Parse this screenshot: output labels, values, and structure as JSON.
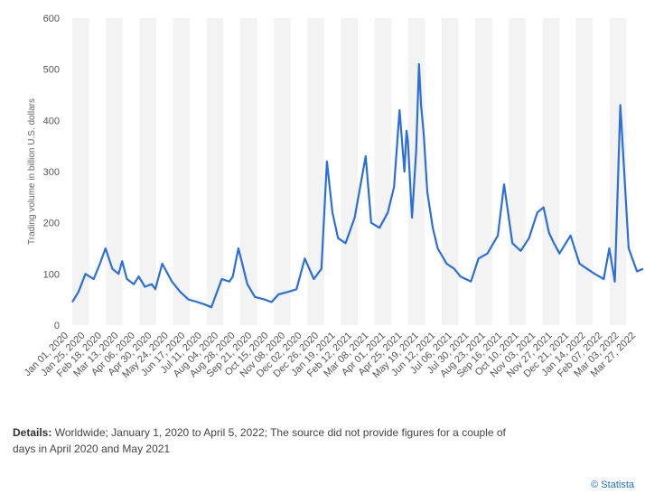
{
  "details": {
    "label": "Details:",
    "text": "Worldwide; January 1, 2020 to April 5, 2022; The source did not provide figures for a couple of days in April 2020 and May 2021"
  },
  "credit": "© Statista",
  "colors": {
    "line": "#2a6fdb",
    "band": "#f3f3f3",
    "axis": "#888888"
  },
  "chart_data": {
    "type": "line",
    "title": "",
    "xlabel": "",
    "ylabel": "Trading volume in billion U.S. dollars",
    "ylim": [
      0,
      600
    ],
    "yticks": [
      0,
      100,
      200,
      300,
      400,
      500,
      600
    ],
    "xticks": [
      "Jan 01, 2020",
      "Jan 25, 2020",
      "Feb 18, 2020",
      "Mar 13, 2020",
      "Apr 06, 2020",
      "Apr 30, 2020",
      "May 24, 2020",
      "Jun 17, 2020",
      "Jul 11, 2020",
      "Aug 04, 2020",
      "Aug 28, 2020",
      "Sep 21, 2020",
      "Oct 15, 2020",
      "Nov 08, 2020",
      "Dec 02, 2020",
      "Dec 26, 2020",
      "Jan 19, 2021",
      "Feb 12, 2021",
      "Mar 08, 2021",
      "Apr 01, 2021",
      "Apr 25, 2021",
      "May 19, 2021",
      "Jun 12, 2021",
      "Jul 06, 2021",
      "Jul 30, 2021",
      "Aug 23, 2021",
      "Sep 16, 2021",
      "Oct 10, 2021",
      "Nov 03, 2021",
      "Nov 27, 2021",
      "Dec 21, 2021",
      "Jan 14, 2022",
      "Feb 07, 2022",
      "Mar 03, 2022",
      "Mar 27, 2022"
    ],
    "grid": true,
    "legend": "none",
    "series": [
      {
        "x": [
          "2020-01-01",
          "2020-01-10",
          "2020-01-20",
          "2020-02-01",
          "2020-02-10",
          "2020-02-18",
          "2020-02-28",
          "2020-03-08",
          "2020-03-13",
          "2020-03-20",
          "2020-03-30",
          "2020-04-06",
          "2020-04-15",
          "2020-04-25",
          "2020-04-30",
          "2020-05-10",
          "2020-05-24",
          "2020-06-05",
          "2020-06-17",
          "2020-06-30",
          "2020-07-11",
          "2020-07-20",
          "2020-08-04",
          "2020-08-15",
          "2020-08-20",
          "2020-08-28",
          "2020-09-10",
          "2020-09-21",
          "2020-10-05",
          "2020-10-15",
          "2020-10-25",
          "2020-11-08",
          "2020-11-20",
          "2020-12-02",
          "2020-12-15",
          "2020-12-26",
          "2021-01-03",
          "2021-01-11",
          "2021-01-19",
          "2021-01-30",
          "2021-02-12",
          "2021-02-20",
          "2021-02-28",
          "2021-03-08",
          "2021-03-20",
          "2021-04-01",
          "2021-04-10",
          "2021-04-18",
          "2021-04-25",
          "2021-04-28",
          "2021-04-30",
          "2021-05-06",
          "2021-05-12",
          "2021-05-16",
          "2021-05-19",
          "2021-05-23",
          "2021-05-28",
          "2021-06-05",
          "2021-06-12",
          "2021-06-25",
          "2021-07-06",
          "2021-07-15",
          "2021-07-30",
          "2021-08-10",
          "2021-08-23",
          "2021-09-07",
          "2021-09-16",
          "2021-09-28",
          "2021-10-10",
          "2021-10-22",
          "2021-11-03",
          "2021-11-12",
          "2021-11-20",
          "2021-11-27",
          "2021-12-05",
          "2021-12-21",
          "2022-01-03",
          "2022-01-14",
          "2022-01-25",
          "2022-02-07",
          "2022-02-15",
          "2022-02-23",
          "2022-03-03",
          "2022-03-15",
          "2022-03-27",
          "2022-04-05"
        ],
        "values": [
          45,
          65,
          100,
          90,
          120,
          150,
          110,
          100,
          125,
          90,
          80,
          95,
          75,
          80,
          70,
          120,
          85,
          65,
          50,
          45,
          40,
          35,
          90,
          85,
          95,
          150,
          80,
          55,
          50,
          45,
          60,
          65,
          70,
          130,
          90,
          110,
          320,
          220,
          170,
          160,
          210,
          270,
          330,
          200,
          190,
          220,
          270,
          420,
          300,
          380,
          360,
          210,
          340,
          510,
          430,
          370,
          260,
          190,
          150,
          120,
          110,
          95,
          85,
          130,
          140,
          175,
          275,
          160,
          145,
          170,
          220,
          230,
          180,
          160,
          140,
          175,
          120,
          110,
          100,
          90,
          150,
          85,
          430,
          150,
          105,
          110
        ]
      }
    ]
  }
}
